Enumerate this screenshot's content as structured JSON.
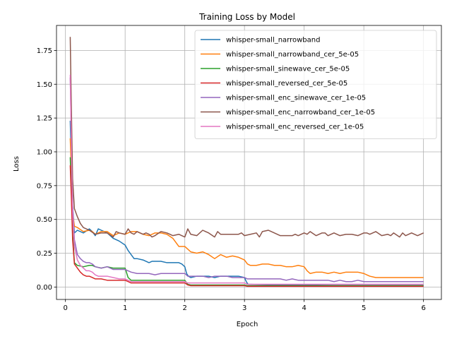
{
  "chart_data": {
    "type": "line",
    "title": "Training Loss by Model",
    "xlabel": "Epoch",
    "ylabel": "Loss",
    "xlim": [
      -0.15,
      6.3
    ],
    "ylim": [
      -0.092,
      1.935
    ],
    "xticks": [
      0,
      1,
      2,
      3,
      4,
      5,
      6
    ],
    "xtick_labels": [
      "0",
      "1",
      "2",
      "3",
      "4",
      "5",
      "6"
    ],
    "yticks": [
      0.0,
      0.25,
      0.5,
      0.75,
      1.0,
      1.25,
      1.5,
      1.75
    ],
    "ytick_labels": [
      "0.00",
      "0.25",
      "0.50",
      "0.75",
      "1.00",
      "1.25",
      "1.50",
      "1.75"
    ],
    "grid": true,
    "legend_position": "top-right",
    "series": [
      {
        "name": "whisper-small_narrowband",
        "color": "#1f77b4",
        "x": [
          0.08,
          0.1,
          0.12,
          0.15,
          0.2,
          0.3,
          0.4,
          0.45,
          0.5,
          0.55,
          0.6,
          0.7,
          0.8,
          0.9,
          1.0,
          1.05,
          1.1,
          1.15,
          1.2,
          1.3,
          1.4,
          1.45,
          1.5,
          1.6,
          1.7,
          1.75,
          1.8,
          1.9,
          1.95,
          2.0,
          2.03,
          2.06,
          2.1,
          2.2,
          2.3,
          2.4,
          2.5,
          2.6,
          2.7,
          2.8,
          2.9,
          3.0,
          3.03,
          3.06,
          3.5,
          4.0,
          4.5,
          5.0,
          5.5,
          6.0
        ],
        "y": [
          1.23,
          0.9,
          0.6,
          0.4,
          0.42,
          0.4,
          0.43,
          0.41,
          0.38,
          0.43,
          0.42,
          0.4,
          0.36,
          0.34,
          0.31,
          0.27,
          0.24,
          0.21,
          0.21,
          0.2,
          0.18,
          0.19,
          0.19,
          0.19,
          0.18,
          0.18,
          0.18,
          0.18,
          0.17,
          0.15,
          0.1,
          0.08,
          0.07,
          0.08,
          0.08,
          0.08,
          0.07,
          0.08,
          0.08,
          0.08,
          0.08,
          0.07,
          0.04,
          0.02,
          0.015,
          0.015,
          0.012,
          0.012,
          0.012,
          0.012
        ]
      },
      {
        "name": "whisper-small_narrowband_cer_5e-05",
        "color": "#ff7f0e",
        "x": [
          0.08,
          0.1,
          0.12,
          0.15,
          0.2,
          0.3,
          0.4,
          0.45,
          0.5,
          0.6,
          0.7,
          0.8,
          0.9,
          1.0,
          1.1,
          1.2,
          1.3,
          1.4,
          1.5,
          1.6,
          1.7,
          1.8,
          1.9,
          2.0,
          2.05,
          2.1,
          2.2,
          2.3,
          2.4,
          2.5,
          2.6,
          2.7,
          2.8,
          2.9,
          3.0,
          3.05,
          3.1,
          3.2,
          3.3,
          3.4,
          3.5,
          3.6,
          3.7,
          3.8,
          3.9,
          4.0,
          4.05,
          4.1,
          4.2,
          4.3,
          4.4,
          4.5,
          4.6,
          4.7,
          4.8,
          4.9,
          5.0,
          5.05,
          5.1,
          5.2,
          5.3,
          5.4,
          5.5,
          5.6,
          5.7,
          5.8,
          5.9,
          6.0
        ],
        "y": [
          1.1,
          0.85,
          0.55,
          0.45,
          0.44,
          0.41,
          0.42,
          0.41,
          0.39,
          0.41,
          0.41,
          0.38,
          0.4,
          0.39,
          0.41,
          0.41,
          0.39,
          0.38,
          0.4,
          0.4,
          0.39,
          0.36,
          0.3,
          0.3,
          0.28,
          0.26,
          0.25,
          0.26,
          0.24,
          0.21,
          0.24,
          0.22,
          0.23,
          0.22,
          0.2,
          0.17,
          0.16,
          0.16,
          0.17,
          0.17,
          0.16,
          0.16,
          0.15,
          0.15,
          0.16,
          0.15,
          0.12,
          0.1,
          0.11,
          0.11,
          0.1,
          0.11,
          0.1,
          0.11,
          0.11,
          0.11,
          0.1,
          0.09,
          0.08,
          0.07,
          0.07,
          0.07,
          0.07,
          0.07,
          0.07,
          0.07,
          0.07,
          0.07
        ]
      },
      {
        "name": "whisper-small_sinewave_cer_5e-05",
        "color": "#2ca02c",
        "x": [
          0.08,
          0.1,
          0.12,
          0.15,
          0.2,
          0.3,
          0.4,
          0.45,
          0.5,
          0.6,
          0.7,
          0.8,
          0.9,
          1.0,
          1.05,
          1.1,
          1.2,
          1.3,
          1.4,
          1.5,
          1.6,
          1.7,
          1.8,
          1.9,
          2.0,
          2.05,
          2.1,
          2.5,
          3.0,
          3.05,
          3.5,
          4.0,
          4.5,
          5.0,
          5.5,
          6.0
        ],
        "y": [
          0.96,
          0.7,
          0.4,
          0.18,
          0.16,
          0.15,
          0.16,
          0.16,
          0.15,
          0.14,
          0.15,
          0.14,
          0.14,
          0.14,
          0.07,
          0.05,
          0.05,
          0.05,
          0.05,
          0.05,
          0.05,
          0.05,
          0.05,
          0.05,
          0.05,
          0.02,
          0.015,
          0.015,
          0.015,
          0.01,
          0.01,
          0.01,
          0.01,
          0.01,
          0.01,
          0.01
        ]
      },
      {
        "name": "whisper-small_reversed_cer_5e-05",
        "color": "#d62728",
        "x": [
          0.08,
          0.1,
          0.12,
          0.15,
          0.2,
          0.25,
          0.3,
          0.35,
          0.4,
          0.45,
          0.5,
          0.6,
          0.7,
          0.8,
          0.9,
          1.0,
          1.05,
          1.1,
          1.2,
          1.5,
          2.0,
          2.05,
          2.1,
          2.5,
          3.0,
          3.05,
          3.5,
          4.0,
          4.5,
          5.0,
          5.5,
          6.0
        ],
        "y": [
          0.9,
          0.65,
          0.35,
          0.17,
          0.14,
          0.11,
          0.09,
          0.08,
          0.08,
          0.07,
          0.06,
          0.06,
          0.05,
          0.05,
          0.05,
          0.05,
          0.04,
          0.03,
          0.03,
          0.03,
          0.03,
          0.015,
          0.01,
          0.01,
          0.01,
          0.005,
          0.005,
          0.005,
          0.005,
          0.005,
          0.005,
          0.005
        ]
      },
      {
        "name": "whisper-small_enc_sinewave_cer_1e-05",
        "color": "#9467bd",
        "x": [
          0.08,
          0.1,
          0.12,
          0.15,
          0.2,
          0.25,
          0.3,
          0.35,
          0.4,
          0.45,
          0.5,
          0.6,
          0.7,
          0.8,
          0.9,
          1.0,
          1.05,
          1.1,
          1.2,
          1.3,
          1.4,
          1.5,
          1.6,
          1.7,
          1.8,
          1.9,
          2.0,
          2.05,
          2.1,
          2.2,
          2.3,
          2.4,
          2.5,
          2.6,
          2.7,
          2.8,
          2.9,
          3.0,
          3.05,
          3.1,
          3.2,
          3.3,
          3.4,
          3.5,
          3.6,
          3.7,
          3.8,
          3.9,
          4.0,
          4.1,
          4.2,
          4.3,
          4.4,
          4.5,
          4.6,
          4.7,
          4.8,
          4.9,
          5.0,
          5.1,
          5.2,
          5.3,
          5.4,
          5.5,
          5.6,
          5.7,
          5.8,
          5.9,
          6.0
        ],
        "y": [
          1.55,
          1.1,
          0.6,
          0.35,
          0.24,
          0.21,
          0.19,
          0.18,
          0.18,
          0.17,
          0.15,
          0.14,
          0.15,
          0.13,
          0.13,
          0.13,
          0.12,
          0.11,
          0.1,
          0.1,
          0.1,
          0.09,
          0.1,
          0.1,
          0.1,
          0.1,
          0.1,
          0.08,
          0.08,
          0.08,
          0.08,
          0.07,
          0.08,
          0.08,
          0.08,
          0.07,
          0.07,
          0.07,
          0.06,
          0.06,
          0.06,
          0.06,
          0.06,
          0.06,
          0.06,
          0.05,
          0.06,
          0.05,
          0.05,
          0.05,
          0.05,
          0.05,
          0.05,
          0.04,
          0.05,
          0.04,
          0.04,
          0.05,
          0.04,
          0.04,
          0.04,
          0.04,
          0.04,
          0.04,
          0.04,
          0.04,
          0.04,
          0.04,
          0.04
        ]
      },
      {
        "name": "whisper-small_enc_narrowband_cer_1e-05",
        "color": "#8c564b",
        "x": [
          0.08,
          0.1,
          0.12,
          0.15,
          0.2,
          0.25,
          0.3,
          0.4,
          0.5,
          0.6,
          0.7,
          0.8,
          0.85,
          0.9,
          1.0,
          1.05,
          1.1,
          1.15,
          1.2,
          1.3,
          1.35,
          1.4,
          1.45,
          1.5,
          1.6,
          1.7,
          1.75,
          1.8,
          1.9,
          1.95,
          2.0,
          2.05,
          2.1,
          2.2,
          2.3,
          2.35,
          2.4,
          2.5,
          2.55,
          2.6,
          2.7,
          2.8,
          2.9,
          2.95,
          3.0,
          3.1,
          3.2,
          3.25,
          3.3,
          3.4,
          3.5,
          3.6,
          3.7,
          3.8,
          3.85,
          3.9,
          4.0,
          4.05,
          4.1,
          4.2,
          4.3,
          4.35,
          4.4,
          4.5,
          4.6,
          4.7,
          4.8,
          4.9,
          5.0,
          5.05,
          5.1,
          5.2,
          5.3,
          5.4,
          5.45,
          5.5,
          5.6,
          5.65,
          5.7,
          5.8,
          5.9,
          6.0
        ],
        "y": [
          1.85,
          1.3,
          0.8,
          0.58,
          0.52,
          0.47,
          0.44,
          0.42,
          0.39,
          0.4,
          0.4,
          0.37,
          0.41,
          0.4,
          0.39,
          0.43,
          0.4,
          0.39,
          0.41,
          0.39,
          0.4,
          0.39,
          0.37,
          0.38,
          0.41,
          0.4,
          0.39,
          0.38,
          0.39,
          0.38,
          0.37,
          0.43,
          0.39,
          0.38,
          0.42,
          0.41,
          0.4,
          0.37,
          0.41,
          0.39,
          0.39,
          0.39,
          0.39,
          0.4,
          0.38,
          0.39,
          0.4,
          0.37,
          0.41,
          0.42,
          0.4,
          0.38,
          0.38,
          0.38,
          0.39,
          0.38,
          0.4,
          0.39,
          0.41,
          0.38,
          0.4,
          0.4,
          0.38,
          0.4,
          0.38,
          0.39,
          0.39,
          0.38,
          0.4,
          0.4,
          0.39,
          0.41,
          0.38,
          0.39,
          0.38,
          0.4,
          0.37,
          0.4,
          0.38,
          0.4,
          0.38,
          0.4
        ]
      },
      {
        "name": "whisper-small_enc_reversed_cer_1e-05",
        "color": "#e377c2",
        "x": [
          0.08,
          0.1,
          0.12,
          0.15,
          0.2,
          0.25,
          0.3,
          0.35,
          0.4,
          0.45,
          0.5,
          0.55,
          0.6,
          0.7,
          0.8,
          0.9,
          1.0,
          1.05,
          1.1,
          1.2,
          1.3,
          1.4,
          1.5,
          1.6,
          1.7,
          1.8,
          1.9,
          2.0,
          2.05,
          2.1,
          2.5,
          3.0,
          3.05,
          3.5,
          4.0,
          4.5,
          5.0,
          5.5,
          6.0
        ],
        "y": [
          1.57,
          1.0,
          0.55,
          0.3,
          0.2,
          0.16,
          0.14,
          0.12,
          0.12,
          0.11,
          0.09,
          0.08,
          0.08,
          0.08,
          0.07,
          0.06,
          0.06,
          0.05,
          0.04,
          0.04,
          0.04,
          0.04,
          0.04,
          0.04,
          0.04,
          0.04,
          0.04,
          0.04,
          0.03,
          0.03,
          0.03,
          0.03,
          0.02,
          0.02,
          0.02,
          0.02,
          0.02,
          0.02,
          0.02
        ]
      }
    ]
  }
}
